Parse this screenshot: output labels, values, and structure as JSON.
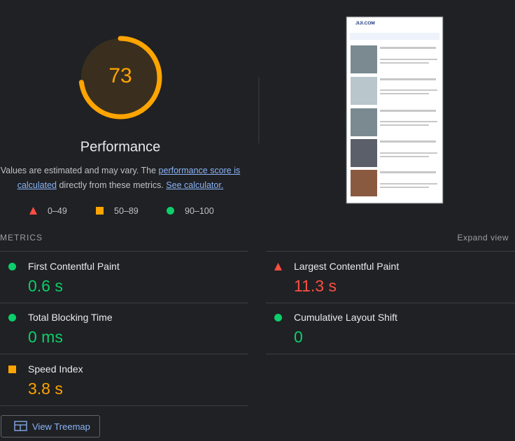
{
  "gauge": {
    "score": 73,
    "label": "Performance"
  },
  "note": {
    "before": "Values are estimated and may vary. The ",
    "link1": "performance score is calculated",
    "middle": " directly from these metrics. ",
    "link2": "See calculator."
  },
  "legend": [
    {
      "rating": "fail",
      "range": "0–49"
    },
    {
      "rating": "average",
      "range": "50–89"
    },
    {
      "rating": "pass",
      "range": "90–100"
    }
  ],
  "metrics": {
    "heading": "METRICS",
    "toggle": "Expand view",
    "items": [
      {
        "name": "First Contentful Paint",
        "value": "0.6 s",
        "rating": "pass"
      },
      {
        "name": "Largest Contentful Paint",
        "value": "11.3 s",
        "rating": "fail"
      },
      {
        "name": "Total Blocking Time",
        "value": "0 ms",
        "rating": "pass"
      },
      {
        "name": "Cumulative Layout Shift",
        "value": "0",
        "rating": "pass"
      },
      {
        "name": "Speed Index",
        "value": "3.8 s",
        "rating": "average"
      }
    ]
  },
  "button": "View Treemap",
  "screenshot": {
    "site": "JIJI.COM"
  }
}
